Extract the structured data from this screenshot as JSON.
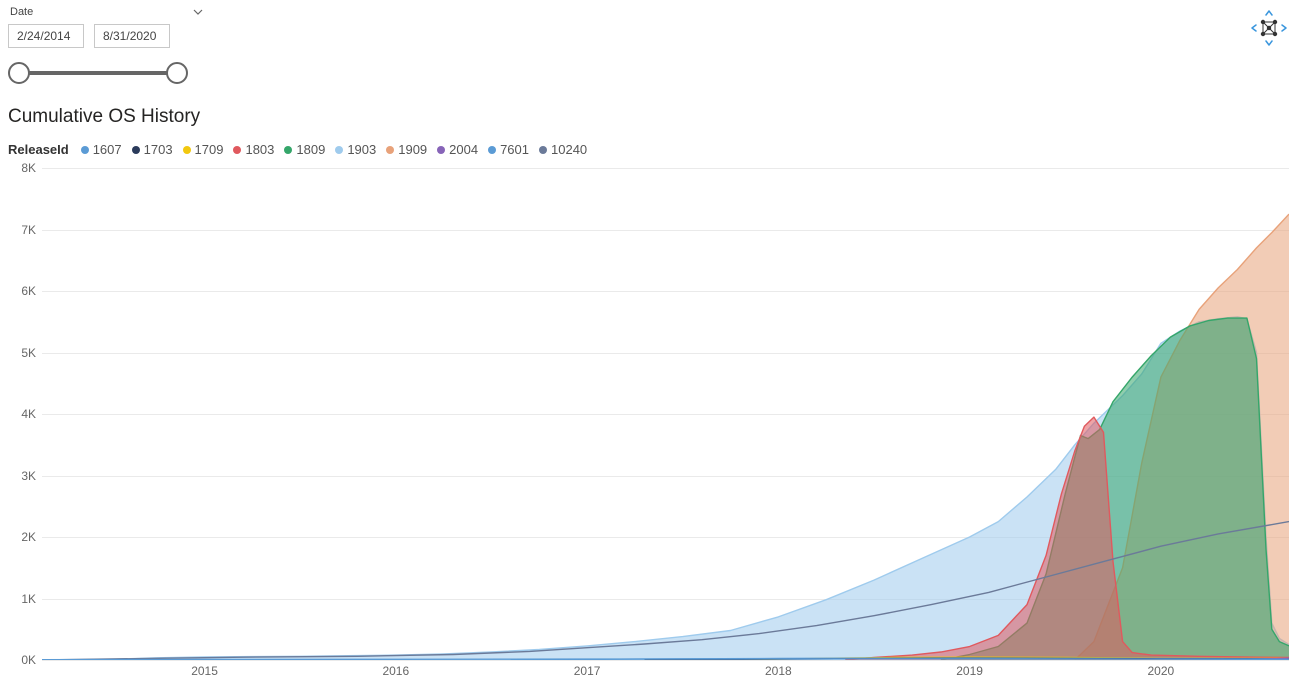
{
  "slicer": {
    "label": "Date",
    "start": "2/24/2014",
    "end": "8/31/2020"
  },
  "chart": {
    "type": "area",
    "title": "Cumulative OS History",
    "legend_title": "ReleaseId",
    "background_color": "#ffffff",
    "grid_color": "#eaeaea",
    "axis_label_color": "#666666",
    "axis_label_fontsize": 12,
    "title_fontsize": 19,
    "area_opacity": 0.55,
    "line_width": 1.4,
    "y": {
      "min": 0,
      "max": 8000,
      "step": 1000,
      "labels": [
        "0K",
        "1K",
        "2K",
        "3K",
        "4K",
        "5K",
        "6K",
        "7K",
        "8K"
      ]
    },
    "x": {
      "min": 2014.15,
      "max": 2020.67,
      "tick_positions": [
        2015,
        2016,
        2017,
        2018,
        2019,
        2020
      ],
      "tick_labels": [
        "2015",
        "2016",
        "2017",
        "2018",
        "2019",
        "2020"
      ]
    },
    "legend": [
      {
        "id": "1607",
        "color": "#5b9bd5"
      },
      {
        "id": "1703",
        "color": "#2b3b5b"
      },
      {
        "id": "1709",
        "color": "#f2c80f"
      },
      {
        "id": "1803",
        "color": "#e0595e"
      },
      {
        "id": "1809",
        "color": "#35a66a"
      },
      {
        "id": "1903",
        "color": "#9fcbed"
      },
      {
        "id": "1909",
        "color": "#e8a27a"
      },
      {
        "id": "2004",
        "color": "#8764b8"
      },
      {
        "id": "7601",
        "color": "#5b9bd5"
      },
      {
        "id": "10240",
        "color": "#6b7a99"
      }
    ],
    "series": [
      {
        "id": "1903",
        "color": "#9fcbed",
        "fill": true,
        "points": [
          [
            2014.15,
            0
          ],
          [
            2014.5,
            10
          ],
          [
            2014.75,
            35
          ],
          [
            2015.0,
            50
          ],
          [
            2015.25,
            55
          ],
          [
            2015.5,
            60
          ],
          [
            2015.75,
            70
          ],
          [
            2016.0,
            80
          ],
          [
            2016.25,
            100
          ],
          [
            2016.5,
            130
          ],
          [
            2016.75,
            170
          ],
          [
            2017.0,
            230
          ],
          [
            2017.25,
            300
          ],
          [
            2017.5,
            380
          ],
          [
            2017.75,
            480
          ],
          [
            2018.0,
            700
          ],
          [
            2018.25,
            980
          ],
          [
            2018.5,
            1300
          ],
          [
            2018.75,
            1650
          ],
          [
            2019.0,
            2000
          ],
          [
            2019.15,
            2250
          ],
          [
            2019.3,
            2650
          ],
          [
            2019.45,
            3100
          ],
          [
            2019.55,
            3500
          ],
          [
            2019.65,
            3850
          ],
          [
            2019.8,
            4300
          ],
          [
            2019.9,
            4650
          ],
          [
            2020.0,
            5150
          ],
          [
            2020.1,
            5350
          ],
          [
            2020.2,
            5500
          ],
          [
            2020.3,
            5550
          ],
          [
            2020.4,
            5580
          ],
          [
            2020.45,
            5550
          ],
          [
            2020.5,
            5000
          ],
          [
            2020.55,
            2000
          ],
          [
            2020.58,
            600
          ],
          [
            2020.62,
            350
          ],
          [
            2020.67,
            250
          ]
        ]
      },
      {
        "id": "1909",
        "color": "#e8a27a",
        "fill": true,
        "points": [
          [
            2019.55,
            0
          ],
          [
            2019.65,
            300
          ],
          [
            2019.8,
            1500
          ],
          [
            2019.9,
            3200
          ],
          [
            2020.0,
            4600
          ],
          [
            2020.1,
            5200
          ],
          [
            2020.2,
            5700
          ],
          [
            2020.3,
            6050
          ],
          [
            2020.4,
            6350
          ],
          [
            2020.5,
            6700
          ],
          [
            2020.58,
            6950
          ],
          [
            2020.67,
            7250
          ]
        ]
      },
      {
        "id": "1809",
        "color": "#35a66a",
        "fill": true,
        "points": [
          [
            2018.85,
            0
          ],
          [
            2019.0,
            90
          ],
          [
            2019.15,
            220
          ],
          [
            2019.3,
            600
          ],
          [
            2019.4,
            1400
          ],
          [
            2019.5,
            2700
          ],
          [
            2019.55,
            3300
          ],
          [
            2019.58,
            3650
          ],
          [
            2019.62,
            3600
          ],
          [
            2019.68,
            3750
          ],
          [
            2019.75,
            4200
          ],
          [
            2019.85,
            4600
          ],
          [
            2019.95,
            4950
          ],
          [
            2020.05,
            5250
          ],
          [
            2020.15,
            5430
          ],
          [
            2020.25,
            5520
          ],
          [
            2020.35,
            5560
          ],
          [
            2020.45,
            5560
          ],
          [
            2020.5,
            4900
          ],
          [
            2020.55,
            1800
          ],
          [
            2020.58,
            500
          ],
          [
            2020.62,
            300
          ],
          [
            2020.67,
            230
          ]
        ]
      },
      {
        "id": "1803",
        "color": "#e0595e",
        "fill": true,
        "points": [
          [
            2018.35,
            0
          ],
          [
            2018.5,
            40
          ],
          [
            2018.7,
            80
          ],
          [
            2018.85,
            130
          ],
          [
            2019.0,
            220
          ],
          [
            2019.15,
            400
          ],
          [
            2019.3,
            900
          ],
          [
            2019.4,
            1700
          ],
          [
            2019.48,
            2700
          ],
          [
            2019.55,
            3400
          ],
          [
            2019.6,
            3800
          ],
          [
            2019.65,
            3950
          ],
          [
            2019.7,
            3700
          ],
          [
            2019.75,
            1600
          ],
          [
            2019.8,
            300
          ],
          [
            2019.85,
            120
          ],
          [
            2019.95,
            80
          ],
          [
            2020.2,
            60
          ],
          [
            2020.5,
            45
          ],
          [
            2020.67,
            40
          ]
        ]
      },
      {
        "id": "10240",
        "color": "#6b7a99",
        "fill": false,
        "points": [
          [
            2014.15,
            0
          ],
          [
            2014.8,
            30
          ],
          [
            2015.2,
            45
          ],
          [
            2015.8,
            60
          ],
          [
            2016.3,
            90
          ],
          [
            2016.7,
            140
          ],
          [
            2017.0,
            200
          ],
          [
            2017.3,
            260
          ],
          [
            2017.6,
            330
          ],
          [
            2017.9,
            430
          ],
          [
            2018.2,
            560
          ],
          [
            2018.5,
            720
          ],
          [
            2018.8,
            900
          ],
          [
            2019.1,
            1100
          ],
          [
            2019.4,
            1350
          ],
          [
            2019.7,
            1600
          ],
          [
            2020.0,
            1850
          ],
          [
            2020.3,
            2050
          ],
          [
            2020.67,
            2250
          ]
        ]
      },
      {
        "id": "1709",
        "color": "#f2c80f",
        "fill": false,
        "points": [
          [
            2017.8,
            0
          ],
          [
            2018.0,
            15
          ],
          [
            2018.3,
            30
          ],
          [
            2018.6,
            40
          ],
          [
            2019.0,
            45
          ],
          [
            2019.5,
            40
          ],
          [
            2020.0,
            30
          ],
          [
            2020.67,
            25
          ]
        ]
      },
      {
        "id": "1607",
        "color": "#5b9bd5",
        "fill": false,
        "points": [
          [
            2016.6,
            0
          ],
          [
            2017.0,
            10
          ],
          [
            2017.5,
            20
          ],
          [
            2018.0,
            25
          ],
          [
            2018.5,
            30
          ],
          [
            2019.0,
            32
          ],
          [
            2019.5,
            30
          ],
          [
            2020.0,
            25
          ],
          [
            2020.67,
            20
          ]
        ]
      },
      {
        "id": "1703",
        "color": "#2b3b5b",
        "fill": false,
        "points": [
          [
            2017.3,
            0
          ],
          [
            2017.8,
            12
          ],
          [
            2018.3,
            20
          ],
          [
            2018.8,
            25
          ],
          [
            2019.3,
            25
          ],
          [
            2020.0,
            20
          ],
          [
            2020.67,
            15
          ]
        ]
      },
      {
        "id": "2004",
        "color": "#8764b8",
        "fill": false,
        "points": [
          [
            2020.35,
            0
          ],
          [
            2020.45,
            5
          ],
          [
            2020.55,
            15
          ],
          [
            2020.67,
            30
          ]
        ]
      },
      {
        "id": "7601",
        "color": "#5b9bd5",
        "fill": false,
        "points": [
          [
            2014.15,
            5
          ],
          [
            2015.0,
            8
          ],
          [
            2016.0,
            12
          ],
          [
            2017.0,
            15
          ],
          [
            2018.0,
            18
          ],
          [
            2019.0,
            20
          ],
          [
            2020.0,
            15
          ],
          [
            2020.67,
            10
          ]
        ]
      }
    ]
  }
}
